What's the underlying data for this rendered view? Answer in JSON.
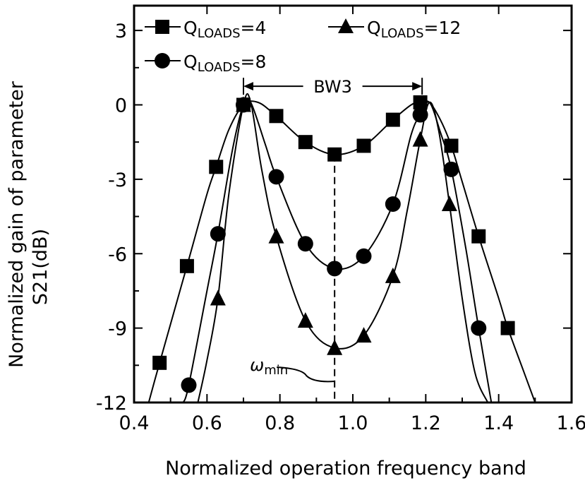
{
  "chart_data": {
    "type": "line",
    "xlabel": "Normalized operation frequency band",
    "ylabel_line1": "Normalized gain of parameter",
    "ylabel_line2": "S21(dB)",
    "xlim": [
      0.4,
      1.6
    ],
    "ylim": [
      -12,
      4
    ],
    "x_ticks": [
      "0.4",
      "0.6",
      "0.8",
      "1.0",
      "1.2",
      "1.4",
      "1.6"
    ],
    "y_ticks": [
      "3",
      "0",
      "-3",
      "-6",
      "-9",
      "-12"
    ],
    "grid": false,
    "legend_position": "top",
    "series": [
      {
        "name": "Q_LOADS=4",
        "name_main": "Q",
        "name_sub": "LOADS",
        "name_rest": "=4",
        "marker": "square",
        "x": [
          0.47,
          0.545,
          0.625,
          0.7,
          0.79,
          0.87,
          0.95,
          1.03,
          1.11,
          1.185,
          1.27,
          1.345,
          1.425
        ],
        "y": [
          -10.4,
          -6.5,
          -2.5,
          0.0,
          -0.45,
          -1.5,
          -2.0,
          -1.65,
          -0.6,
          0.1,
          -1.65,
          -5.3,
          -9.0
        ],
        "curve_x": [
          0.44,
          0.47,
          0.545,
          0.6,
          0.625,
          0.66,
          0.7,
          0.74,
          0.79,
          0.87,
          0.95,
          1.03,
          1.11,
          1.16,
          1.185,
          1.21,
          1.24,
          1.27,
          1.3,
          1.345,
          1.4,
          1.425,
          1.47,
          1.5
        ],
        "curve_y": [
          -12.0,
          -10.4,
          -6.5,
          -3.6,
          -2.5,
          -1.0,
          0.0,
          0.1,
          -0.45,
          -1.5,
          -2.0,
          -1.65,
          -0.6,
          0.0,
          0.1,
          0.1,
          -0.6,
          -1.65,
          -3.1,
          -5.3,
          -7.8,
          -9.0,
          -10.8,
          -12.0
        ]
      },
      {
        "name": "Q_LOADS=8",
        "name_main": "Q",
        "name_sub": "LOADS",
        "name_rest": "=8",
        "marker": "circle",
        "x": [
          0.55,
          0.63,
          0.7,
          0.79,
          0.87,
          0.95,
          1.03,
          1.11,
          1.185,
          1.27,
          1.345
        ],
        "y": [
          -11.3,
          -5.2,
          0.0,
          -2.9,
          -5.6,
          -6.6,
          -6.1,
          -4.0,
          -0.4,
          -2.6,
          -9.0
        ],
        "curve_x": [
          0.535,
          0.55,
          0.6,
          0.63,
          0.67,
          0.7,
          0.72,
          0.76,
          0.79,
          0.87,
          0.95,
          1.03,
          1.11,
          1.16,
          1.185,
          1.21,
          1.24,
          1.27,
          1.31,
          1.345,
          1.38
        ],
        "curve_y": [
          -12.0,
          -11.3,
          -7.5,
          -5.2,
          -1.8,
          0.0,
          0.1,
          -1.6,
          -2.9,
          -5.6,
          -6.6,
          -6.1,
          -4.0,
          -1.2,
          -0.4,
          0.1,
          -1.1,
          -2.6,
          -5.8,
          -9.0,
          -12.0
        ]
      },
      {
        "name": "Q_LOADS=12",
        "name_main": "Q",
        "name_sub": "LOADS",
        "name_rest": "=12",
        "marker": "triangle",
        "x": [
          0.63,
          0.7,
          0.79,
          0.87,
          0.95,
          1.03,
          1.11,
          1.185,
          1.265
        ],
        "y": [
          -7.8,
          0.0,
          -5.3,
          -8.7,
          -9.8,
          -9.3,
          -6.9,
          -1.4,
          -4.0
        ],
        "curve_x": [
          0.575,
          0.6,
          0.63,
          0.66,
          0.7,
          0.72,
          0.75,
          0.79,
          0.87,
          0.95,
          1.03,
          1.11,
          1.15,
          1.185,
          1.21,
          1.235,
          1.265,
          1.3,
          1.335,
          1.37
        ],
        "curve_y": [
          -12.0,
          -10.3,
          -7.8,
          -3.6,
          0.0,
          0.1,
          -2.6,
          -5.3,
          -8.7,
          -9.8,
          -9.3,
          -6.9,
          -4.2,
          -1.4,
          0.1,
          -1.0,
          -4.0,
          -7.8,
          -10.8,
          -12.0
        ]
      }
    ],
    "annotations": {
      "bw3_label": "BW3",
      "bw3_from_x": 0.7,
      "bw3_to_x": 1.19,
      "bw3_y": 0.75,
      "omega_min_label": "ω",
      "omega_min_sub": "min",
      "omega_min_x": 0.95,
      "omega_min_y_top": -2.0
    }
  }
}
